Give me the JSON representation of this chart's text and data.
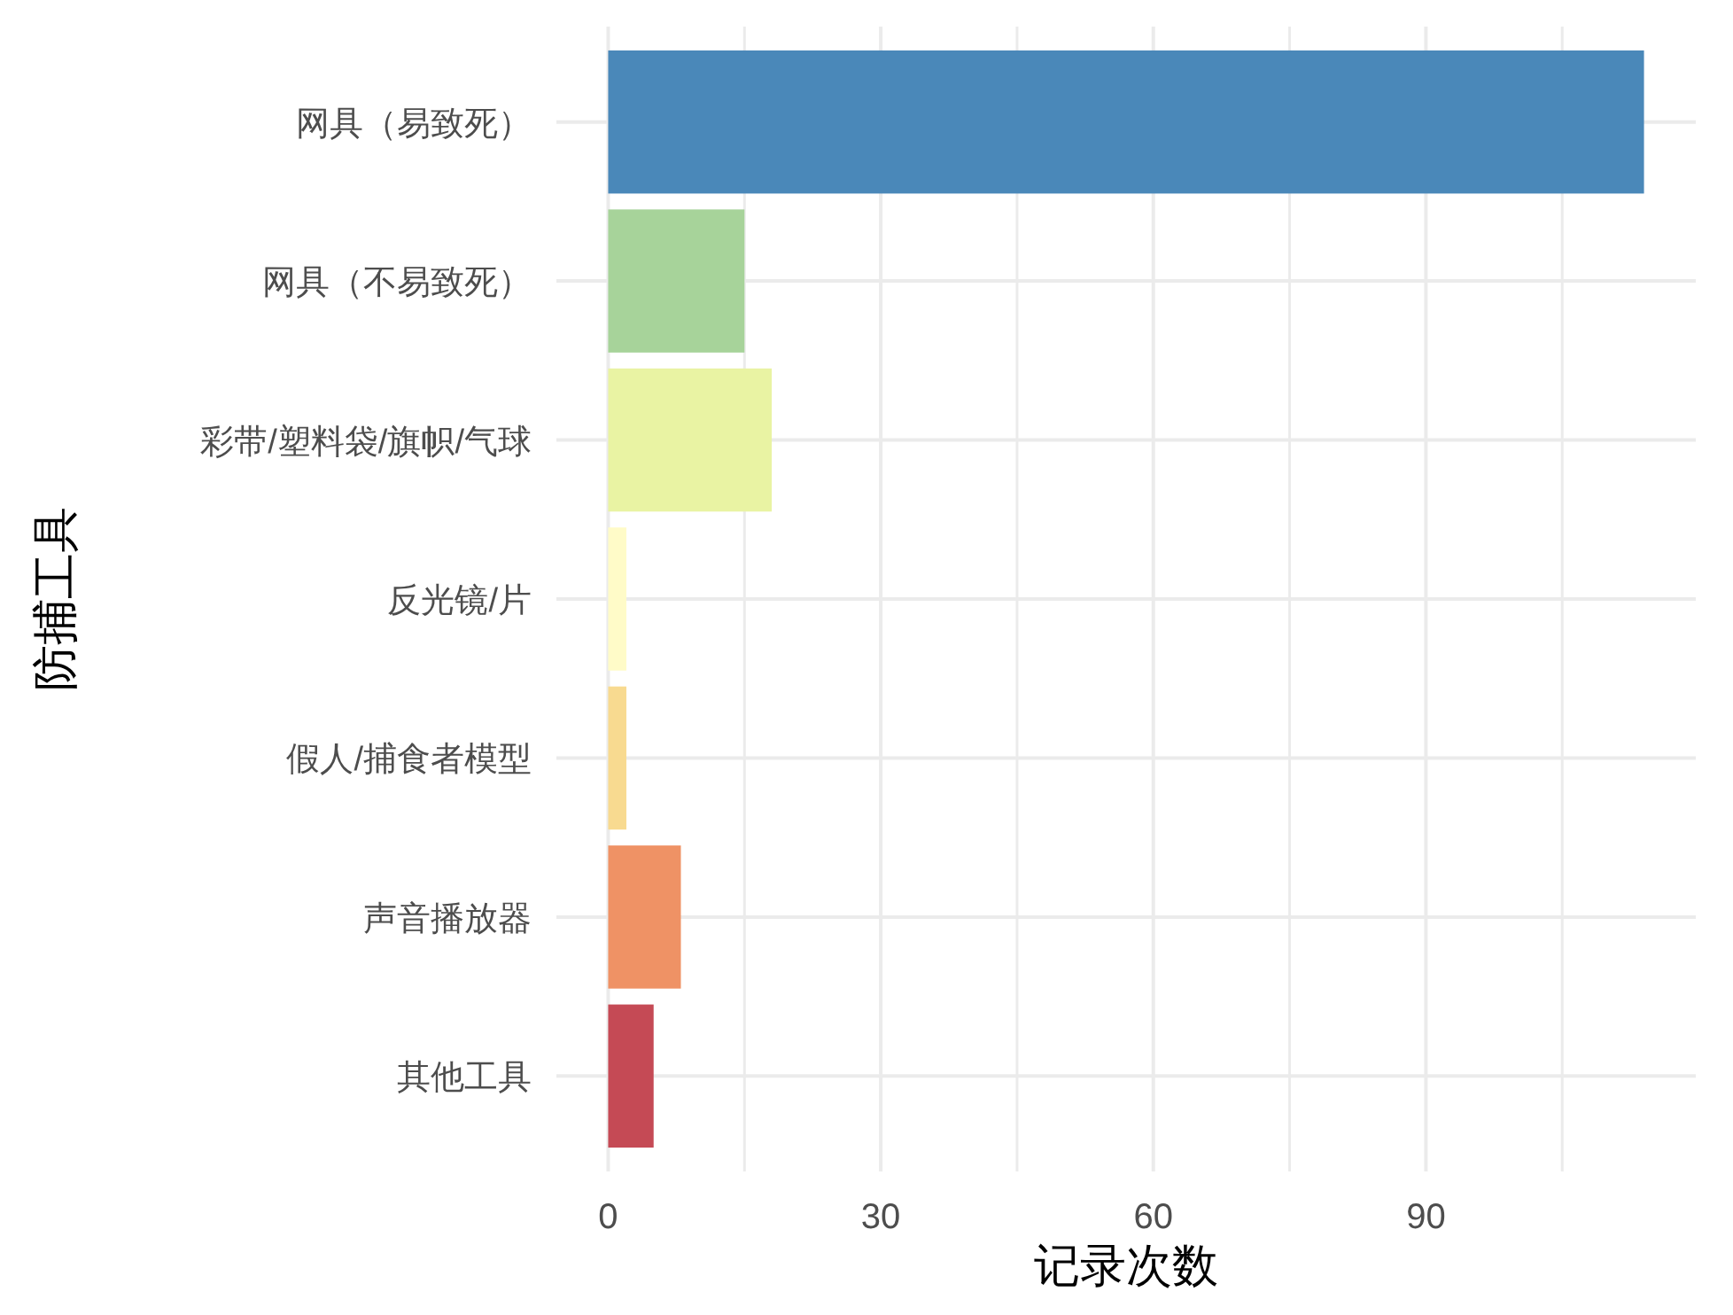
{
  "chart_data": {
    "type": "bar",
    "orientation": "horizontal",
    "categories": [
      "网具（易致死）",
      "网具（不易致死）",
      "彩带/塑料袋/旗帜/气球",
      "反光镜/片",
      "假人/捕食者模型",
      "声音播放器",
      "其他工具"
    ],
    "values": [
      114,
      15,
      18,
      2,
      2,
      8,
      5
    ],
    "colors": [
      "#4a88b9",
      "#a7d39a",
      "#e9f3a3",
      "#fffbc8",
      "#f8da90",
      "#ef9265",
      "#c54a55"
    ],
    "xlabel": "记录次数",
    "ylabel": "防捕工具",
    "xlim": [
      -5.7,
      119.7
    ],
    "xticks": [
      0,
      {
        "value": 15,
        "label": null
      },
      30,
      {
        "value": 45,
        "label": null
      },
      60,
      {
        "value": 75,
        "label": null
      },
      90,
      {
        "value": 105,
        "label": null
      }
    ],
    "grid": true
  }
}
